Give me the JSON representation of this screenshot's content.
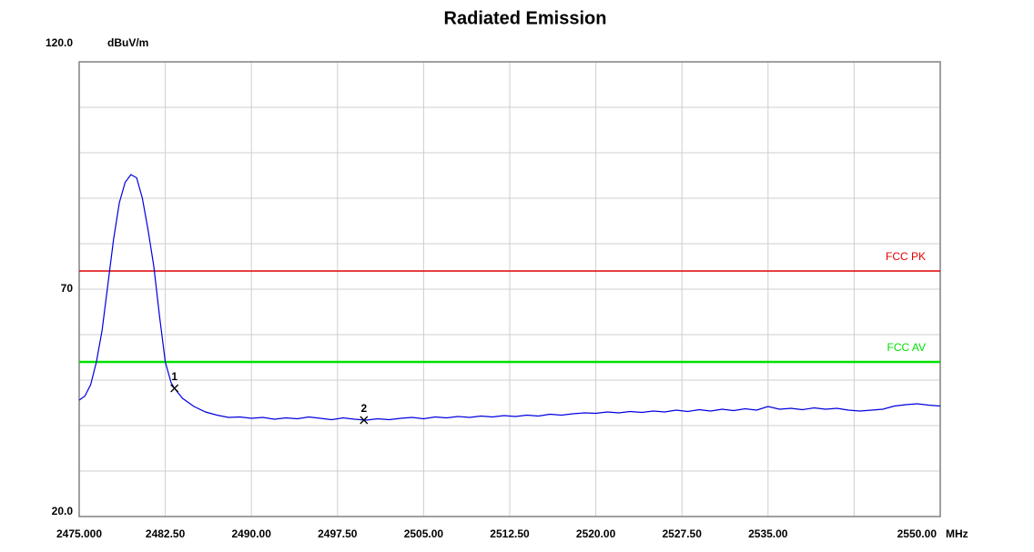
{
  "chart_data": {
    "type": "line",
    "title": "Radiated Emission",
    "y_unit": "dBuV/m",
    "x_unit": "MHz",
    "xlim": [
      2475,
      2550
    ],
    "ylim": [
      20,
      120
    ],
    "xticks": [
      {
        "value": 2475,
        "label": "2475.000"
      },
      {
        "value": 2482.5,
        "label": "2482.50"
      },
      {
        "value": 2490,
        "label": "2490.00"
      },
      {
        "value": 2497.5,
        "label": "2497.50"
      },
      {
        "value": 2505,
        "label": "2505.00"
      },
      {
        "value": 2512.5,
        "label": "2512.50"
      },
      {
        "value": 2520,
        "label": "2520.00"
      },
      {
        "value": 2527.5,
        "label": "2527.50"
      },
      {
        "value": 2535,
        "label": "2535.00"
      },
      {
        "value": 2550,
        "label": "2550.00"
      }
    ],
    "xgrid": [
      2475,
      2482.5,
      2490,
      2497.5,
      2505,
      2512.5,
      2520,
      2527.5,
      2535,
      2542.5,
      2550
    ],
    "yticks": [
      {
        "value": 20,
        "label": "20.0"
      },
      70,
      {
        "value": 120,
        "label": "120.0"
      }
    ],
    "ygrid": [
      20,
      30,
      40,
      50,
      60,
      70,
      80,
      90,
      100,
      110,
      120
    ],
    "grid": true,
    "series": [
      {
        "color": "#0000e0",
        "x": [
          2475,
          2475.5,
          2476,
          2476.5,
          2477,
          2477.5,
          2478,
          2478.5,
          2479,
          2479.5,
          2480,
          2480.5,
          2481,
          2481.5,
          2482,
          2482.5,
          2483,
          2483.3,
          2484,
          2485,
          2486,
          2487,
          2488,
          2489,
          2490,
          2491,
          2492,
          2493,
          2494,
          2495,
          2496,
          2497,
          2498,
          2499,
          2500,
          2501,
          2502,
          2503,
          2504,
          2505,
          2506,
          2507,
          2508,
          2509,
          2510,
          2511,
          2512,
          2513,
          2514,
          2515,
          2516,
          2517,
          2518,
          2519,
          2520,
          2521,
          2522,
          2523,
          2524,
          2525,
          2526,
          2527,
          2528,
          2529,
          2530,
          2531,
          2532,
          2533,
          2534,
          2535,
          2536,
          2537,
          2538,
          2539,
          2540,
          2541,
          2542,
          2543,
          2544,
          2545,
          2546,
          2547,
          2548,
          2549,
          2550
        ],
        "values": [
          45.6,
          46.5,
          49,
          54,
          61,
          71,
          81,
          89,
          93.5,
          95.2,
          94.5,
          90,
          83,
          75,
          64,
          54,
          49.5,
          48.2,
          46,
          44.2,
          43,
          42.3,
          41.8,
          41.9,
          41.6,
          41.8,
          41.4,
          41.7,
          41.5,
          41.9,
          41.6,
          41.3,
          41.7,
          41.4,
          41.2,
          41.5,
          41.3,
          41.6,
          41.8,
          41.5,
          41.9,
          41.7,
          42.0,
          41.8,
          42.1,
          41.9,
          42.2,
          42.0,
          42.3,
          42.1,
          42.5,
          42.3,
          42.6,
          42.8,
          42.7,
          43.0,
          42.8,
          43.1,
          42.9,
          43.2,
          43.0,
          43.4,
          43.1,
          43.5,
          43.2,
          43.6,
          43.3,
          43.7,
          43.4,
          44.2,
          43.6,
          43.8,
          43.5,
          43.9,
          43.6,
          43.8,
          43.4,
          43.2,
          43.4,
          43.6,
          44.3,
          44.6,
          44.8,
          44.5,
          44.3
        ]
      }
    ],
    "limit_lines": [
      {
        "name": "FCC PK",
        "value": 74,
        "color": "#e00000"
      },
      {
        "name": "FCC AV",
        "value": 54,
        "color": "#00e000"
      }
    ],
    "markers": [
      {
        "label": "1",
        "x": 2483.3,
        "y": 48.2
      },
      {
        "label": "2",
        "x": 2499.8,
        "y": 41.2
      }
    ]
  }
}
